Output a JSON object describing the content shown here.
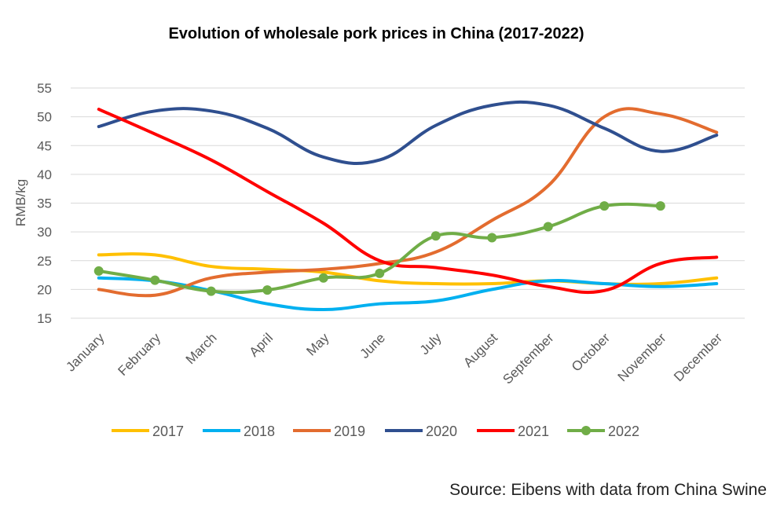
{
  "chart_data": {
    "type": "line",
    "title": "Evolution of wholesale pork prices in China (2017-2022)",
    "ylabel": "RMB/kg",
    "xlabel": "",
    "ylim": [
      15,
      55
    ],
    "yticks": [
      15,
      20,
      25,
      30,
      35,
      40,
      45,
      50,
      55
    ],
    "grid": true,
    "legend_position": "bottom",
    "categories": [
      "January",
      "February",
      "March",
      "April",
      "May",
      "June",
      "July",
      "August",
      "September",
      "October",
      "November",
      "December"
    ],
    "series": [
      {
        "name": "2017",
        "color": "#FFC000",
        "markers": false,
        "values": [
          26,
          26,
          24,
          23.5,
          23,
          21.5,
          21,
          21,
          21.5,
          21,
          21,
          22
        ]
      },
      {
        "name": "2018",
        "color": "#00B0F0",
        "markers": false,
        "values": [
          22,
          21.5,
          19.8,
          17.5,
          16.5,
          17.5,
          18,
          20,
          21.5,
          21,
          20.5,
          21
        ]
      },
      {
        "name": "2019",
        "color": "#E36C2F",
        "markers": false,
        "values": [
          20,
          19,
          22,
          23,
          23.5,
          24.5,
          26.5,
          32,
          38,
          50,
          50.5,
          47.3
        ]
      },
      {
        "name": "2020",
        "color": "#2F4F8F",
        "markers": false,
        "values": [
          48.3,
          51,
          51,
          48,
          43,
          42.5,
          48.5,
          52,
          52,
          48,
          44,
          46.8
        ]
      },
      {
        "name": "2021",
        "color": "#FF0000",
        "markers": false,
        "values": [
          51.3,
          47,
          42.5,
          37,
          31.5,
          25,
          23.8,
          22.5,
          20.5,
          19.8,
          24.5,
          25.6
        ]
      },
      {
        "name": "2022",
        "color": "#70AD47",
        "markers": true,
        "values": [
          23.2,
          21.6,
          19.7,
          19.9,
          22,
          22.8,
          29.3,
          29,
          30.9,
          34.5,
          34.5,
          null
        ]
      }
    ]
  },
  "source": "Source: Eibens with data from China Swine"
}
